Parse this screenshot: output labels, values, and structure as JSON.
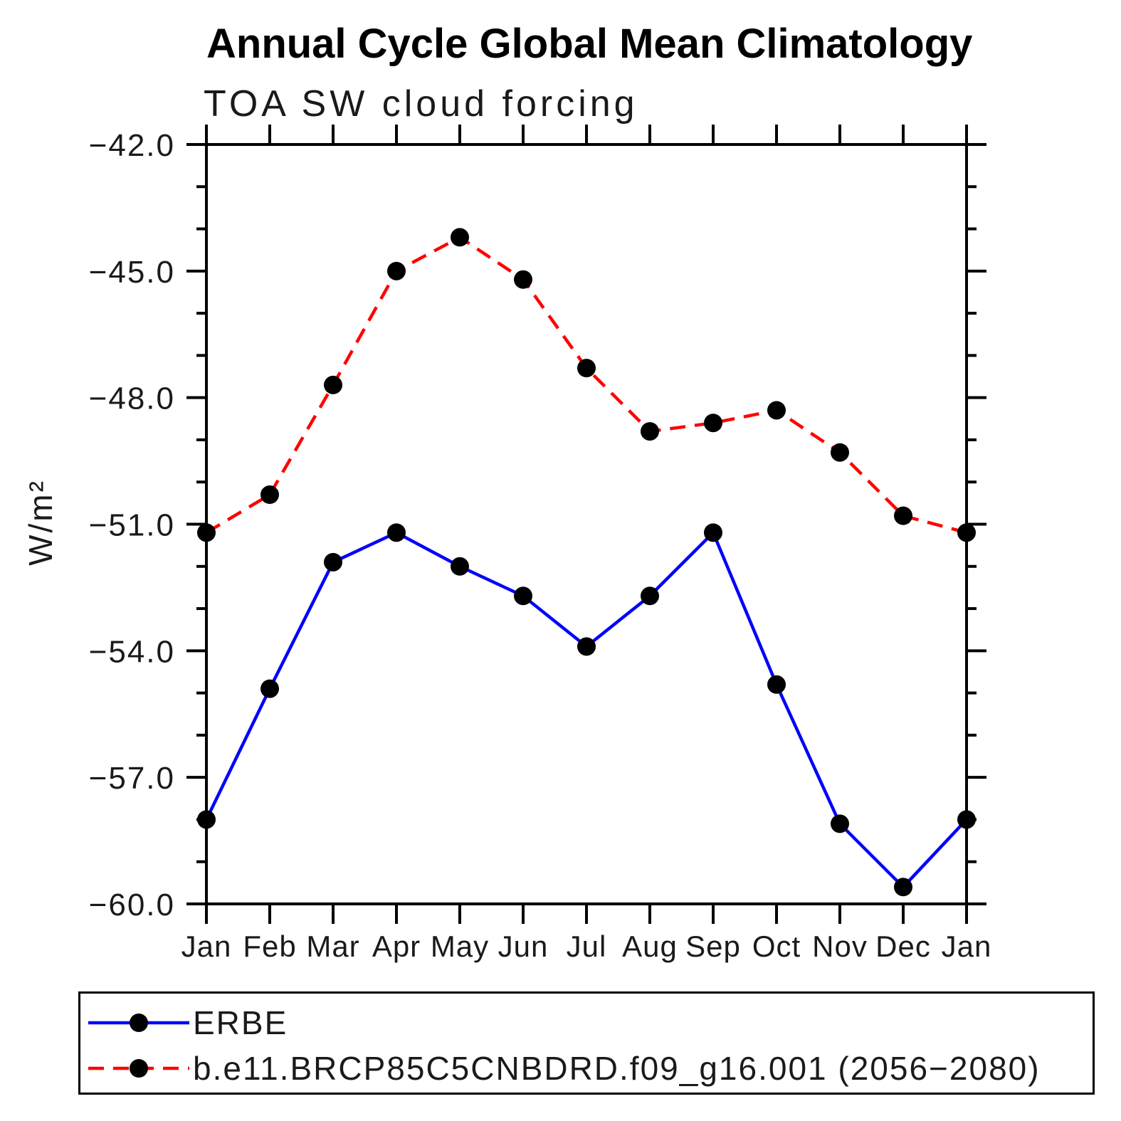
{
  "title": "Annual Cycle Global Mean Climatology",
  "subtitle": "TOA SW cloud forcing",
  "y_axis_label": "W/m²",
  "chart_data": {
    "type": "line",
    "x_categories": [
      "Jan",
      "Feb",
      "Mar",
      "Apr",
      "May",
      "Jun",
      "Jul",
      "Aug",
      "Sep",
      "Oct",
      "Nov",
      "Dec",
      "Jan"
    ],
    "y_axis": {
      "min": -60.0,
      "max": -42.0,
      "major_tick_interval": 3.0,
      "minor_tick_interval": 1.0,
      "major_tick_labels": [
        "−42.0",
        "−45.0",
        "−48.0",
        "−51.0",
        "−54.0",
        "−57.0",
        "−60.0"
      ]
    },
    "grid": "off",
    "legend_position": "bottom",
    "marker_color": "#000000",
    "series": [
      {
        "name": "ERBE",
        "color": "#0000ff",
        "line_style": "solid",
        "marker": "filled-circle",
        "values": [
          -58.0,
          -54.9,
          -51.9,
          -51.2,
          -52.0,
          -52.7,
          -53.9,
          -52.7,
          -51.2,
          -54.8,
          -58.1,
          -59.6,
          -58.0
        ]
      },
      {
        "name": "b.e11.BRCP85C5CNBDRD.f09_g16.001 (2056−2080)",
        "color": "#ff0000",
        "line_style": "dashed",
        "marker": "filled-circle",
        "values": [
          -51.2,
          -50.3,
          -47.7,
          -45.0,
          -44.2,
          -45.2,
          -47.3,
          -48.8,
          -48.6,
          -48.3,
          -49.3,
          -50.8,
          -51.2
        ]
      }
    ]
  }
}
